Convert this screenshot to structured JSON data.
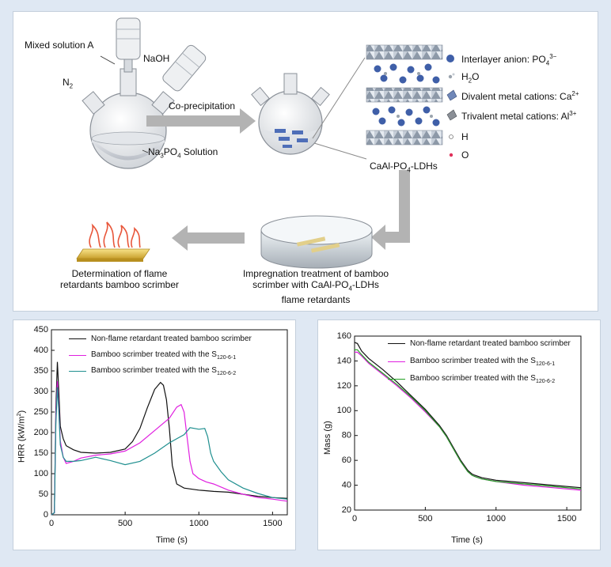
{
  "schematic": {
    "labels": {
      "mixed_solution": "Mixed solution A",
      "naoh": "NaOH",
      "n2": "N",
      "n2_sub": "2",
      "na3po4_a": "Na",
      "na3po4_sub1": "3",
      "na3po4_b": "PO",
      "na3po4_sub2": "4",
      "na3po4_c": " Solution",
      "coprecipitation": "Co-precipitation",
      "ldh_a": "CaAl-PO",
      "ldh_sub": "4",
      "ldh_b": "-LDHs",
      "impregnation_line1": "Impregnation treatment of bamboo",
      "impregnation_line2a": "scrimber with CaAl-PO",
      "impregnation_line2_sub": "4",
      "impregnation_line2b": "-LDHs",
      "impregnation_line3": "flame retardants",
      "determination_line1": "Determination of flame",
      "determination_line2": "retardants bamboo scrimber"
    },
    "legend": [
      {
        "icon": "interlayer-anion-icon",
        "text": "Interlayer anion: PO",
        "sub": "4",
        "sup": "3−"
      },
      {
        "icon": "water-molecule-icon",
        "text": "H",
        "sub": "2",
        "tail": "O"
      },
      {
        "icon": "divalent-cation-icon",
        "text": "Divalent metal cations: Ca",
        "sup": "2+"
      },
      {
        "icon": "trivalent-cation-icon",
        "text": "Trivalent metal cations: Al",
        "sup": "3+"
      },
      {
        "icon": "hydrogen-atom-icon",
        "text": "H"
      },
      {
        "icon": "oxygen-atom-icon",
        "text": "O"
      }
    ],
    "colors": {
      "arrow": "#b3b3b3",
      "anion": "#3f5fa8",
      "flame": "#e8563a",
      "board": "#e6c65a"
    }
  },
  "chart_data": [
    {
      "type": "line",
      "title": "",
      "xlabel": "Time (s)",
      "ylabel": "HRR (kW/m²)",
      "ylabel_parts": {
        "main": "HRR (kW/m",
        "sup": "2",
        "end": ")"
      },
      "xlim": [
        0,
        1600
      ],
      "ylim": [
        0,
        450
      ],
      "xticks": [
        0,
        500,
        1000,
        1500
      ],
      "yticks": [
        0,
        50,
        100,
        150,
        200,
        250,
        300,
        350,
        400,
        450
      ],
      "legend": [
        {
          "name": "Non-flame retardant treated bamboo scrimber",
          "sub": "",
          "color": "#111111"
        },
        {
          "name": "Bamboo scrimber treated with the S",
          "sub": "120-6-1",
          "color": "#e020e0"
        },
        {
          "name": "Bamboo scrimber treated with the S",
          "sub": "120-6-2",
          "color": "#1f8f8f"
        }
      ],
      "series": [
        {
          "name": "Non-flame retardant",
          "color": "#111111",
          "x": [
            0,
            20,
            30,
            40,
            50,
            60,
            80,
            100,
            150,
            200,
            300,
            400,
            500,
            550,
            600,
            650,
            700,
            740,
            760,
            780,
            800,
            820,
            850,
            900,
            1000,
            1100,
            1200,
            1300,
            1400,
            1500,
            1600
          ],
          "y": [
            0,
            5,
            260,
            372,
            300,
            215,
            185,
            168,
            158,
            152,
            150,
            152,
            160,
            178,
            210,
            260,
            305,
            322,
            315,
            280,
            210,
            120,
            75,
            65,
            60,
            57,
            55,
            50,
            45,
            42,
            40
          ]
        },
        {
          "name": "S120-6-1",
          "color": "#e020e0",
          "x": [
            0,
            20,
            30,
            40,
            50,
            60,
            80,
            100,
            150,
            200,
            300,
            400,
            500,
            600,
            700,
            800,
            850,
            880,
            900,
            920,
            940,
            960,
            1000,
            1050,
            1100,
            1200,
            1300,
            1400,
            1500,
            1600
          ],
          "y": [
            0,
            5,
            240,
            325,
            260,
            180,
            140,
            125,
            130,
            138,
            145,
            148,
            155,
            175,
            205,
            235,
            262,
            268,
            250,
            190,
            130,
            100,
            88,
            80,
            75,
            60,
            50,
            42,
            38,
            33
          ]
        },
        {
          "name": "S120-6-2",
          "color": "#1f8f8f",
          "x": [
            0,
            20,
            30,
            40,
            50,
            60,
            80,
            100,
            150,
            200,
            300,
            400,
            500,
            600,
            700,
            800,
            900,
            940,
            1000,
            1040,
            1060,
            1080,
            1100,
            1150,
            1200,
            1300,
            1400,
            1500,
            1600
          ],
          "y": [
            0,
            5,
            220,
            310,
            250,
            170,
            140,
            130,
            130,
            132,
            140,
            132,
            122,
            130,
            150,
            175,
            195,
            212,
            208,
            210,
            190,
            150,
            130,
            105,
            85,
            65,
            52,
            42,
            38
          ]
        }
      ]
    },
    {
      "type": "line",
      "title": "",
      "xlabel": "Time (s)",
      "ylabel": "Mass (g)",
      "xlim": [
        0,
        1600
      ],
      "ylim": [
        20,
        160
      ],
      "xticks": [
        0,
        500,
        1000,
        1500
      ],
      "yticks": [
        20,
        40,
        60,
        80,
        100,
        120,
        140,
        160
      ],
      "legend": [
        {
          "name": "Non-flame retardant treated bamboo scrimber",
          "sub": "",
          "color": "#111111"
        },
        {
          "name": "Bamboo scrimber treated with the S",
          "sub": "120-6-1",
          "color": "#e020e0"
        },
        {
          "name": "Bamboo scrimber treated with the S",
          "sub": "120-6-2",
          "color": "#22a022"
        }
      ],
      "series": [
        {
          "name": "Non-flame retardant",
          "color": "#111111",
          "x": [
            0,
            20,
            50,
            100,
            200,
            300,
            400,
            500,
            600,
            650,
            700,
            750,
            800,
            830,
            850,
            900,
            1000,
            1200,
            1400,
            1600
          ],
          "y": [
            155,
            154,
            148,
            142,
            133,
            123,
            112,
            101,
            88,
            80,
            70,
            60,
            52,
            49,
            48,
            46,
            44,
            42,
            40,
            38
          ]
        },
        {
          "name": "S120-6-1",
          "color": "#e020e0",
          "x": [
            0,
            20,
            50,
            100,
            200,
            300,
            400,
            500,
            600,
            650,
            700,
            750,
            800,
            830,
            850,
            900,
            1000,
            1200,
            1400,
            1600
          ],
          "y": [
            147,
            147,
            144,
            138,
            129,
            120,
            110,
            99,
            87,
            79,
            69,
            59,
            51,
            48,
            47,
            45,
            43,
            40,
            38,
            36
          ]
        },
        {
          "name": "S120-6-2",
          "color": "#22a022",
          "x": [
            0,
            20,
            50,
            100,
            200,
            300,
            400,
            500,
            600,
            650,
            700,
            750,
            800,
            830,
            850,
            900,
            1000,
            1200,
            1400,
            1600
          ],
          "y": [
            149,
            149,
            145,
            139,
            130,
            121,
            111,
            100,
            87,
            79,
            69,
            59,
            51,
            48,
            47,
            45,
            43,
            41,
            39,
            37
          ]
        }
      ]
    }
  ]
}
